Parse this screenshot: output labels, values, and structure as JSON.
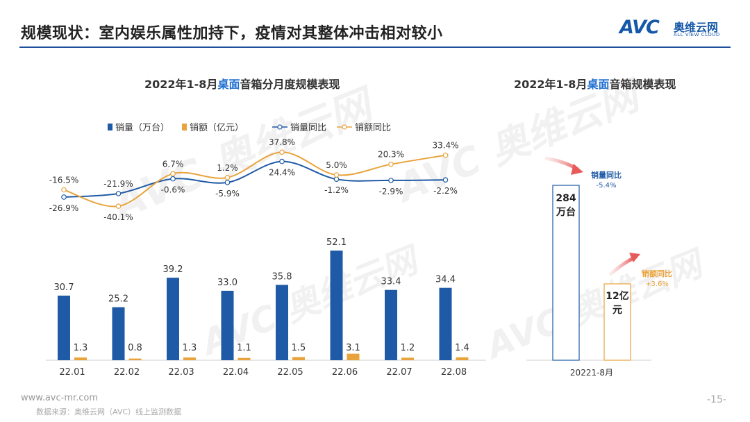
{
  "header": {
    "title": "规模现状：室内娱乐属性加持下，疫情对其整体冲击相对较小",
    "logo_mark": "AVC",
    "logo_cn": "奥维云网",
    "logo_en": "ALL VIEW CLOUD"
  },
  "watermark": {
    "mark": "AVC",
    "cn": "奥维云网",
    "en": "ALL VIEW CLOUD"
  },
  "left_chart": {
    "title_pre": "2022年1-8月",
    "title_hl": "桌面",
    "title_post": "音箱分月度规模表现"
  },
  "right_chart": {
    "title_pre": "2022年1-8月",
    "title_hl": "桌面",
    "title_post": "音箱规模表现"
  },
  "colors": {
    "volume": "#1f5aa6",
    "revenue": "#e8a33d",
    "accent_blue": "#1f6fd1"
  },
  "chart_data": [
    {
      "type": "bar",
      "categories": [
        "22.01",
        "22.02",
        "22.03",
        "22.04",
        "22.05",
        "22.06",
        "22.07",
        "22.08"
      ],
      "legend": [
        "销量（万台）",
        "销额（亿元）",
        "销量同比",
        "销额同比"
      ],
      "series": [
        {
          "name": "销量（万台）",
          "type": "bar",
          "values": [
            30.7,
            25.2,
            39.2,
            33.0,
            35.8,
            52.1,
            33.4,
            34.4
          ],
          "labels": [
            "30.7",
            "25.2",
            "39.2",
            "33.0",
            "35.8",
            "52.1",
            "33.4",
            "34.4"
          ]
        },
        {
          "name": "销额（亿元）",
          "type": "bar",
          "values": [
            1.3,
            0.8,
            1.3,
            1.1,
            1.5,
            3.1,
            1.2,
            1.4
          ],
          "labels": [
            "1.3",
            "0.8",
            "1.3",
            "1.1",
            "1.5",
            "3.1",
            "1.2",
            "1.4"
          ]
        },
        {
          "name": "销量同比",
          "type": "line",
          "values": [
            -26.9,
            -21.9,
            -0.6,
            -5.9,
            24.4,
            -1.2,
            -2.9,
            -2.2
          ],
          "labels": [
            "-26.9%",
            "-21.9%",
            "-0.6%",
            "-5.9%",
            "24.4%",
            "-1.2%",
            "-2.9%",
            "-2.2%"
          ]
        },
        {
          "name": "销额同比",
          "type": "line",
          "values": [
            -16.5,
            -40.1,
            6.7,
            1.2,
            37.8,
            5.0,
            20.3,
            33.4
          ],
          "labels": [
            "-16.5%",
            "-40.1%",
            "6.7%",
            "1.2%",
            "37.8%",
            "5.0%",
            "20.3%",
            "33.4%"
          ]
        }
      ]
    },
    {
      "type": "bar",
      "categories": [
        "20221-8月"
      ],
      "series": [
        {
          "name": "销量",
          "values": [
            284
          ],
          "label": "284\n万台",
          "label_lines": [
            "284",
            "万台"
          ]
        },
        {
          "name": "销额",
          "values": [
            12
          ],
          "label": "12亿\n元",
          "label_lines": [
            "12亿",
            "元"
          ]
        }
      ],
      "annotations": [
        {
          "text": "销量同比",
          "value": "-5.4%"
        },
        {
          "text": "销额同比",
          "value": "+3.6%"
        }
      ]
    }
  ],
  "footer": {
    "url": "www.avc-mr.com",
    "source": "数据来源：奥维云网（AVC）线上监测数据",
    "page": "-15-"
  }
}
